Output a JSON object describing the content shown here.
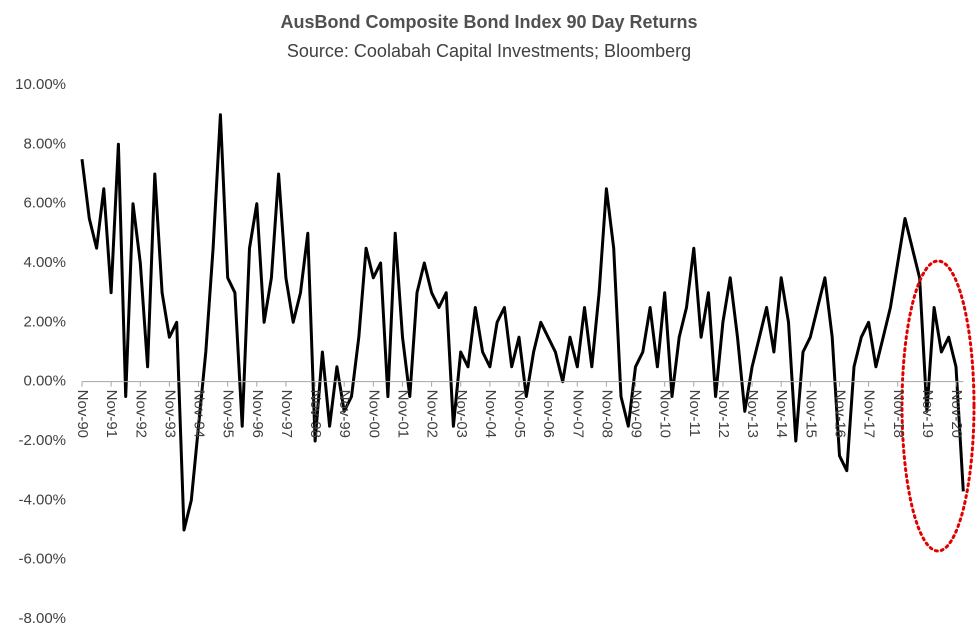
{
  "chart_data": {
    "type": "line",
    "title": "AusBond Composite Bond Index 90 Day Returns",
    "subtitle": "Source: Coolabah Capital Investments; Bloomberg",
    "categories": [
      "Nov-90",
      null,
      null,
      null,
      "Nov-91",
      null,
      null,
      null,
      "Nov-92",
      null,
      null,
      null,
      "Nov-93",
      null,
      null,
      null,
      "Nov-94",
      null,
      null,
      null,
      "Nov-95",
      null,
      null,
      null,
      "Nov-96",
      null,
      null,
      null,
      "Nov-97",
      null,
      null,
      null,
      "Nov-98",
      null,
      null,
      null,
      "Nov-99",
      null,
      null,
      null,
      "Nov-00",
      null,
      null,
      null,
      "Nov-01",
      null,
      null,
      null,
      "Nov-02",
      null,
      null,
      null,
      "Nov-03",
      null,
      null,
      null,
      "Nov-04",
      null,
      null,
      null,
      "Nov-05",
      null,
      null,
      null,
      "Nov-06",
      null,
      null,
      null,
      "Nov-07",
      null,
      null,
      null,
      "Nov-08",
      null,
      null,
      null,
      "Nov-09",
      null,
      null,
      null,
      "Nov-10",
      null,
      null,
      null,
      "Nov-11",
      null,
      null,
      null,
      "Nov-12",
      null,
      null,
      null,
      "Nov-13",
      null,
      null,
      null,
      "Nov-14",
      null,
      null,
      null,
      "Nov-15",
      null,
      null,
      null,
      "Nov-16",
      null,
      null,
      null,
      "Nov-17",
      null,
      null,
      null,
      "Nov-18",
      null,
      null,
      null,
      "Nov-19",
      null,
      null,
      null,
      "Nov-20",
      null
    ],
    "series": [
      {
        "color": "#000000",
        "values": [
          7.5,
          5.5,
          4.5,
          6.5,
          3.0,
          8.0,
          -0.5,
          6.0,
          4.0,
          0.5,
          7.0,
          3.0,
          1.5,
          2.0,
          -5.0,
          -4.0,
          -1.5,
          1.0,
          4.5,
          9.0,
          3.5,
          3.0,
          -1.5,
          4.5,
          6.0,
          2.0,
          3.5,
          7.0,
          3.5,
          2.0,
          3.0,
          5.0,
          -2.0,
          1.0,
          -1.5,
          0.5,
          -1.0,
          -0.5,
          1.5,
          4.5,
          3.5,
          4.0,
          -0.5,
          5.0,
          1.5,
          -0.5,
          3.0,
          4.0,
          3.0,
          2.5,
          3.0,
          -1.5,
          1.0,
          0.5,
          2.5,
          1.0,
          0.5,
          2.0,
          2.5,
          0.5,
          1.5,
          -0.5,
          1.0,
          2.0,
          1.5,
          1.0,
          0.0,
          1.5,
          0.5,
          2.5,
          0.5,
          3.0,
          6.5,
          4.5,
          -0.5,
          -1.5,
          0.5,
          1.0,
          2.5,
          0.5,
          3.0,
          -0.5,
          1.5,
          2.5,
          4.5,
          1.5,
          3.0,
          -0.5,
          2.0,
          3.5,
          1.5,
          -1.0,
          0.5,
          1.5,
          2.5,
          1.0,
          3.5,
          2.0,
          -2.0,
          1.0,
          1.5,
          2.5,
          3.5,
          1.5,
          -2.5,
          -3.0,
          0.5,
          1.5,
          2.0,
          0.5,
          1.5,
          2.5,
          4.0,
          5.5,
          4.5,
          3.5,
          -1.0,
          2.5,
          1.0,
          1.5,
          0.5,
          -3.7
        ]
      }
    ],
    "ylim": [
      -8,
      10
    ],
    "yticks": [
      {
        "value": -8,
        "label": "-8.00%"
      },
      {
        "value": -6,
        "label": "-6.00%"
      },
      {
        "value": -4,
        "label": "-4.00%"
      },
      {
        "value": -2,
        "label": "-2.00%"
      },
      {
        "value": 0,
        "label": "0.00%"
      },
      {
        "value": 2,
        "label": "2.00%"
      },
      {
        "value": 4,
        "label": "4.00%"
      },
      {
        "value": 6,
        "label": "6.00%"
      },
      {
        "value": 8,
        "label": "8.00%"
      },
      {
        "value": 10,
        "label": "10.00%"
      }
    ],
    "grid": false
  }
}
